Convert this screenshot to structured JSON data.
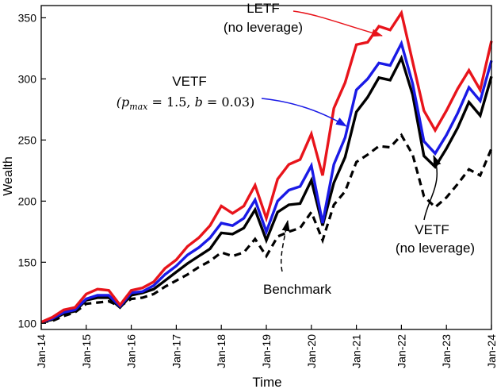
{
  "chart_data": {
    "type": "line",
    "title": "",
    "xlabel": "Time",
    "ylabel": "Wealth",
    "x_ticks": [
      "Jan-14",
      "Jan-15",
      "Jan-16",
      "Jan-17",
      "Jan-18",
      "Jan-19",
      "Jan-20",
      "Jan-21",
      "Jan-22",
      "Jan-23",
      "Jan-24"
    ],
    "xlim": [
      2014,
      2024
    ],
    "ylim": [
      95,
      360
    ],
    "y_ticks": [
      100,
      150,
      200,
      250,
      300,
      350
    ],
    "grid": false,
    "x": [
      2014,
      2014.25,
      2014.5,
      2014.75,
      2015,
      2015.25,
      2015.5,
      2015.75,
      2016,
      2016.25,
      2016.5,
      2016.75,
      2017,
      2017.25,
      2017.5,
      2017.75,
      2018,
      2018.25,
      2018.5,
      2018.75,
      2019,
      2019.25,
      2019.5,
      2019.75,
      2020,
      2020.25,
      2020.5,
      2020.75,
      2021,
      2021.25,
      2021.5,
      2021.75,
      2022,
      2022.25,
      2022.5,
      2022.75,
      2023,
      2023.25,
      2023.5,
      2023.75,
      2024
    ],
    "series": [
      {
        "key": "letf",
        "color": "#e8141b",
        "dash": "",
        "width": 3.4,
        "values": [
          101,
          105,
          111,
          113,
          124,
          128,
          127,
          115,
          127,
          129,
          134,
          145,
          152,
          163,
          170,
          180,
          196,
          190,
          196,
          213,
          186,
          218,
          230,
          234,
          255,
          221,
          276,
          297,
          328,
          330,
          343,
          340,
          354,
          314,
          274,
          258,
          274,
          292,
          307,
          291,
          331
        ]
      },
      {
        "key": "vetf",
        "color": "#1a1ae6",
        "dash": "",
        "width": 3.4,
        "values": [
          101,
          104,
          109,
          111,
          120,
          123,
          123,
          114,
          125,
          126,
          131,
          140,
          147,
          156,
          162,
          170,
          182,
          180,
          186,
          201,
          175,
          200,
          209,
          212,
          229,
          182,
          230,
          252,
          291,
          300,
          313,
          311,
          329,
          296,
          249,
          239,
          254,
          272,
          293,
          282,
          315
        ]
      },
      {
        "key": "vetf_nolev",
        "color": "#000000",
        "dash": "",
        "width": 3.4,
        "values": [
          101,
          103,
          108,
          110,
          119,
          121,
          121,
          113,
          123,
          125,
          128,
          135,
          142,
          149,
          155,
          161,
          174,
          173,
          178,
          193,
          168,
          191,
          197,
          198,
          217,
          180,
          215,
          236,
          273,
          285,
          301,
          299,
          317,
          287,
          237,
          228,
          243,
          260,
          281,
          270,
          302
        ]
      },
      {
        "key": "benchmark",
        "color": "#000000",
        "dash": "9 6",
        "width": 3.2,
        "values": [
          101,
          102,
          106,
          109,
          116,
          117,
          118,
          114,
          120,
          121,
          124,
          130,
          135,
          140,
          146,
          151,
          158,
          155,
          158,
          169,
          155,
          171,
          175,
          178,
          191,
          168,
          197,
          208,
          232,
          238,
          245,
          244,
          254,
          238,
          204,
          195,
          203,
          214,
          226,
          221,
          243
        ]
      }
    ],
    "annotations": [
      {
        "key": "letf",
        "lines": [
          "LETF",
          "(no leverage)"
        ],
        "color": "#e8141b"
      },
      {
        "key": "vetf",
        "lines": [
          "VETF"
        ],
        "math": "(p_max = 1.5, b = 0.03)",
        "color": "#1a1ae6"
      },
      {
        "key": "vetf_nolev",
        "lines": [
          "VETF",
          "(no leverage)"
        ],
        "color": "#000000"
      },
      {
        "key": "benchmark",
        "lines": [
          "Benchmark"
        ],
        "color": "#000000"
      }
    ]
  }
}
